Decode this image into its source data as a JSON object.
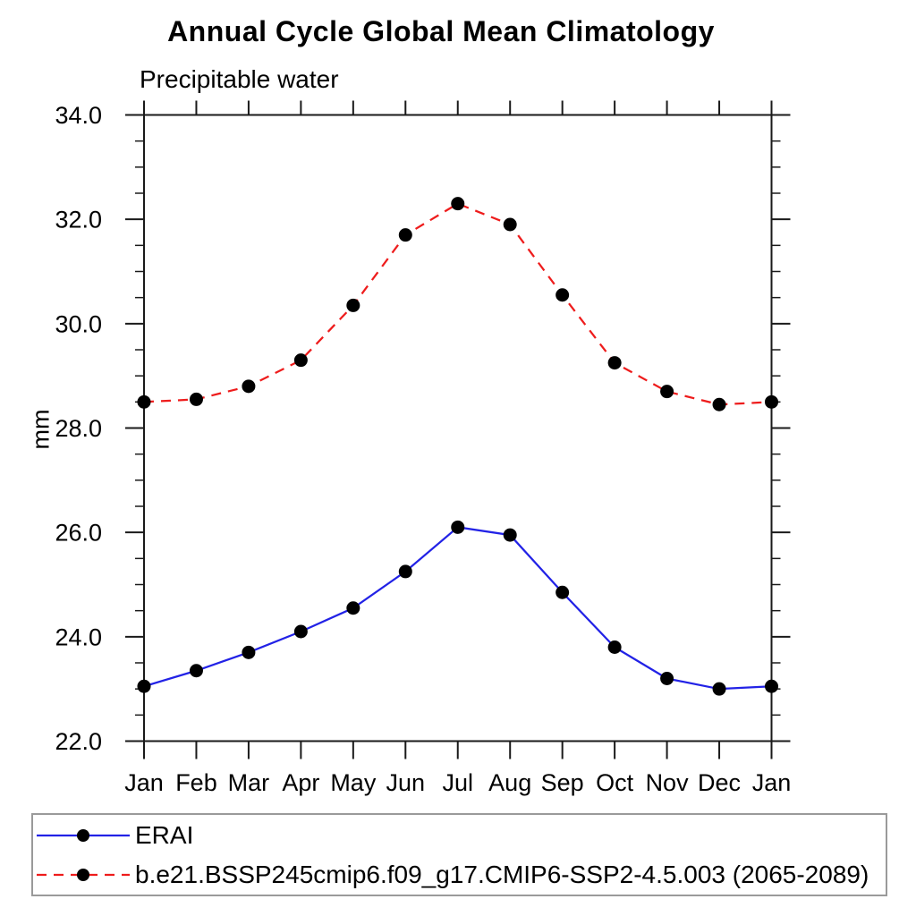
{
  "chart_data": {
    "type": "line",
    "title": "Annual Cycle Global Mean Climatology",
    "subtitle": "Precipitable water",
    "xlabel": "",
    "ylabel": "mm",
    "categories": [
      "Jan",
      "Feb",
      "Mar",
      "Apr",
      "May",
      "Jun",
      "Jul",
      "Aug",
      "Sep",
      "Oct",
      "Nov",
      "Dec",
      "Jan"
    ],
    "series": [
      {
        "name": "ERAI",
        "color": "#2222e6",
        "line_style": "solid",
        "marker": "filled-circle",
        "marker_color": "#000000",
        "values": [
          23.05,
          23.35,
          23.7,
          24.1,
          24.55,
          25.25,
          26.1,
          25.95,
          24.85,
          23.8,
          23.2,
          23.0,
          23.05
        ]
      },
      {
        "name": "b.e21.BSSP245cmip6.f09_g17.CMIP6-SSP2-4.5.003 (2065-2089)",
        "color": "#ee1c1c",
        "line_style": "dashed",
        "marker": "filled-circle",
        "marker_color": "#000000",
        "values": [
          28.5,
          28.55,
          28.8,
          29.3,
          30.35,
          31.7,
          32.3,
          31.9,
          30.55,
          29.25,
          28.7,
          28.45,
          28.5
        ]
      }
    ],
    "ylim": [
      22.0,
      34.0
    ],
    "y_major_ticks": [
      22,
      24,
      26,
      28,
      30,
      32,
      34
    ],
    "y_tick_labels": [
      "22.0",
      "24.0",
      "26.0",
      "28.0",
      "30.0",
      "32.0",
      "34.0"
    ],
    "y_minor_step": 0.5,
    "grid": false,
    "axis_color": "#1a1a1a",
    "legend_position": "bottom-left-box"
  }
}
